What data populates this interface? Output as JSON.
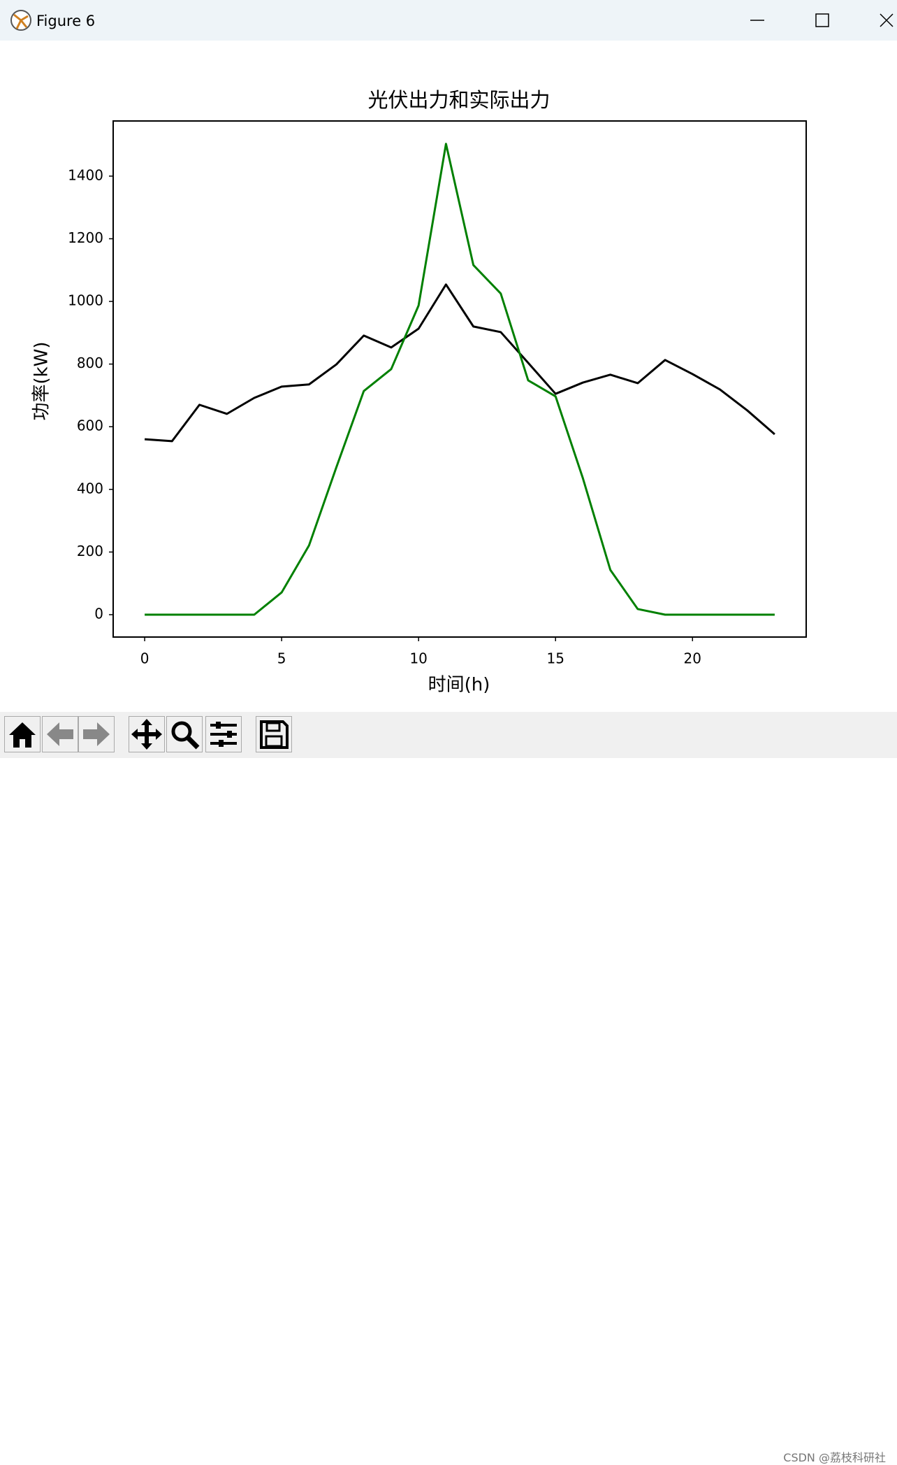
{
  "window": {
    "title": "Figure 6"
  },
  "watermark": "CSDN @荔枝科研社",
  "chart_data": {
    "type": "line",
    "title": "光伏出力和实际出力",
    "xlabel": "时间(h)",
    "ylabel": "功率(kW)",
    "x": [
      0,
      1,
      2,
      3,
      4,
      5,
      6,
      7,
      8,
      9,
      10,
      11,
      12,
      13,
      14,
      15,
      16,
      17,
      18,
      19,
      20,
      21,
      22,
      23
    ],
    "series": [
      {
        "color": "#000000",
        "values": [
          560,
          554,
          670,
          641,
          692,
          728,
          735,
          799,
          891,
          853,
          913,
          1054,
          920,
          902,
          804,
          705,
          741,
          766,
          739,
          813,
          768,
          719,
          652,
          576
        ]
      },
      {
        "color": "#008000",
        "values": [
          0,
          0,
          0,
          0,
          0,
          71,
          221,
          471,
          714,
          784,
          987,
          1503,
          1116,
          1025,
          748,
          697,
          435,
          143,
          18,
          0,
          0,
          0,
          0,
          0
        ]
      }
    ],
    "xlim": [
      -1.15,
      24.15
    ],
    "ylim": [
      -71.4,
      1576
    ],
    "xticks": [
      0,
      5,
      10,
      15,
      20
    ],
    "yticks": [
      0,
      200,
      400,
      600,
      800,
      1000,
      1200,
      1400
    ]
  }
}
